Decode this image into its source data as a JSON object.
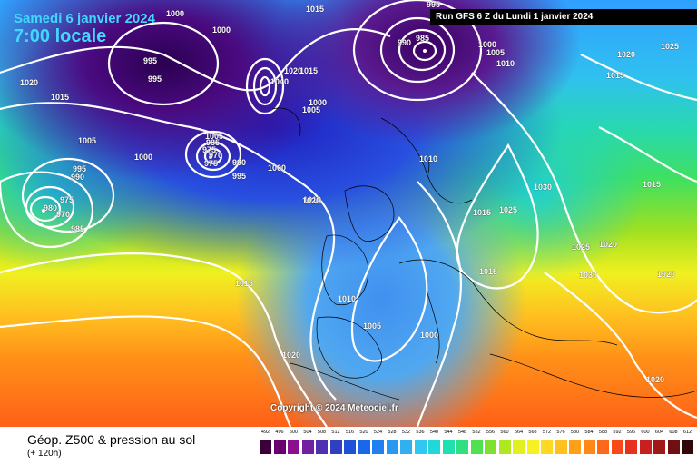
{
  "header": {
    "date": "Samedi 6 janvier 2024",
    "time": "7:00 locale",
    "run": "Run GFS 6 Z du Lundi 1 janvier 2024"
  },
  "copyright": "Copyright © 2024 Meteociel.fr",
  "footer": {
    "title": "Géop. Z500 & pression au sol",
    "subtitle": "(+ 120h)"
  },
  "isobar_labels": [
    {
      "text": "995"
    },
    {
      "text": "1000"
    },
    {
      "text": "1015"
    },
    {
      "text": "1000"
    },
    {
      "text": "995"
    },
    {
      "text": "995"
    },
    {
      "text": "985"
    },
    {
      "text": "990"
    },
    {
      "text": "1000"
    },
    {
      "text": "1005"
    },
    {
      "text": "1010"
    },
    {
      "text": "1025"
    },
    {
      "text": "1020"
    },
    {
      "text": "1015"
    },
    {
      "text": "1020"
    },
    {
      "text": "1015"
    },
    {
      "text": "1000"
    },
    {
      "text": "1005"
    },
    {
      "text": "1040"
    },
    {
      "text": "1020"
    },
    {
      "text": "1015"
    },
    {
      "text": "1005"
    },
    {
      "text": "1000"
    },
    {
      "text": "1005"
    },
    {
      "text": "985"
    },
    {
      "text": "975"
    },
    {
      "text": "970"
    },
    {
      "text": "975"
    },
    {
      "text": "990"
    },
    {
      "text": "995"
    },
    {
      "text": "1000"
    },
    {
      "text": "1010"
    },
    {
      "text": "995"
    },
    {
      "text": "990"
    },
    {
      "text": "975"
    },
    {
      "text": "980"
    },
    {
      "text": "970"
    },
    {
      "text": "985"
    },
    {
      "text": "1010"
    },
    {
      "text": "1020"
    },
    {
      "text": "1030"
    },
    {
      "text": "1015"
    },
    {
      "text": "1015"
    },
    {
      "text": "1025"
    },
    {
      "text": "1025"
    },
    {
      "text": "1020"
    },
    {
      "text": "1015"
    },
    {
      "text": "1030"
    },
    {
      "text": "1020"
    },
    {
      "text": "1015"
    },
    {
      "text": "1010"
    },
    {
      "text": "1005"
    },
    {
      "text": "1000"
    },
    {
      "text": "1020"
    },
    {
      "text": "1020"
    }
  ],
  "scale": {
    "values": [
      "492",
      "496",
      "500",
      "504",
      "508",
      "512",
      "516",
      "520",
      "524",
      "528",
      "532",
      "536",
      "540",
      "544",
      "548",
      "552",
      "556",
      "560",
      "564",
      "568",
      "572",
      "576",
      "580",
      "584",
      "588",
      "592",
      "596",
      "600",
      "604",
      "608",
      "612"
    ],
    "colors": [
      "#3a003a",
      "#6a0070",
      "#8a1090",
      "#7020a0",
      "#5030b0",
      "#3040c0",
      "#2050d8",
      "#1a68e8",
      "#2080f0",
      "#2898f0",
      "#30b0f0",
      "#30c8f0",
      "#20d8d8",
      "#20e0b0",
      "#30e080",
      "#50e050",
      "#80e030",
      "#b0e820",
      "#e0f020",
      "#f8f020",
      "#ffd820",
      "#ffc020",
      "#ffa018",
      "#ff8818",
      "#ff6818",
      "#f84818",
      "#e83020",
      "#c82020",
      "#a01818",
      "#701010",
      "#300808"
    ]
  }
}
